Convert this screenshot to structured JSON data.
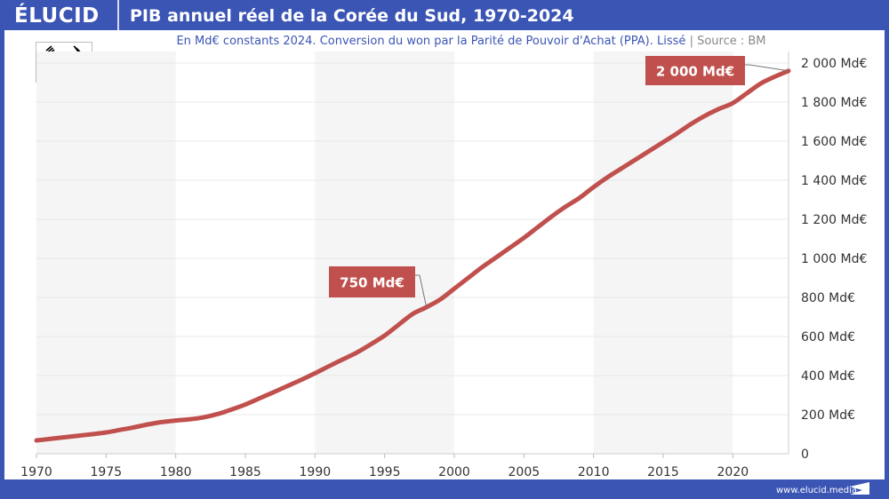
{
  "header": {
    "logo": "ÉLUCID",
    "title": "PIB annuel réel de la Corée du Sud, 1970-2024"
  },
  "subtitle": {
    "text": "En Md€ constants 2024. Conversion du won par la Parité de Pouvoir d'Achat (PPA). Lissé",
    "separator": "|",
    "source": "Source : BM"
  },
  "footer": {
    "url": "www.elucid.media"
  },
  "flag": {
    "country": "south-korea-flag-icon"
  },
  "colors": {
    "brand": "#3b55b5",
    "line": "#c0504d",
    "band": "#f5f5f5"
  },
  "chart_data": {
    "type": "line",
    "title": "PIB annuel réel de la Corée du Sud, 1970-2024",
    "xlabel": "",
    "ylabel": "",
    "xlim": [
      1970,
      2024
    ],
    "ylim": [
      0,
      2000
    ],
    "y_axis_position": "right",
    "grid": true,
    "x_ticks": [
      1970,
      1975,
      1980,
      1985,
      1990,
      1995,
      2000,
      2005,
      2010,
      2015,
      2020
    ],
    "y_ticks": [
      0,
      200,
      400,
      600,
      800,
      1000,
      1200,
      1400,
      1600,
      1800,
      2000
    ],
    "y_tick_labels": [
      "0",
      "200 Md€",
      "400 Md€",
      "600 Md€",
      "800 Md€",
      "1 000 Md€",
      "1 200 Md€",
      "1 400 Md€",
      "1 600 Md€",
      "1 800 Md€",
      "2 000 Md€"
    ],
    "shaded_decades": [
      [
        1970,
        1980
      ],
      [
        1990,
        2000
      ],
      [
        2010,
        2020
      ]
    ],
    "x": [
      1970,
      1971,
      1972,
      1973,
      1974,
      1975,
      1976,
      1977,
      1978,
      1979,
      1980,
      1981,
      1982,
      1983,
      1984,
      1985,
      1986,
      1987,
      1988,
      1989,
      1990,
      1991,
      1992,
      1993,
      1994,
      1995,
      1996,
      1997,
      1998,
      1999,
      2000,
      2001,
      2002,
      2003,
      2004,
      2005,
      2006,
      2007,
      2008,
      2009,
      2010,
      2011,
      2012,
      2013,
      2014,
      2015,
      2016,
      2017,
      2018,
      2019,
      2020,
      2021,
      2022,
      2023,
      2024
    ],
    "series": [
      {
        "values": [
          68,
          76,
          84,
          92,
          100,
          109,
          122,
          135,
          150,
          162,
          170,
          176,
          186,
          203,
          226,
          252,
          283,
          314,
          346,
          378,
          412,
          448,
          483,
          518,
          560,
          605,
          660,
          715,
          750,
          790,
          845,
          900,
          955,
          1005,
          1055,
          1105,
          1160,
          1215,
          1265,
          1310,
          1365,
          1415,
          1460,
          1505,
          1550,
          1595,
          1640,
          1688,
          1730,
          1765,
          1795,
          1845,
          1895,
          1930,
          1960
        ]
      }
    ],
    "annotations": [
      {
        "x": 1998,
        "y": 750,
        "label": "750 Md€"
      },
      {
        "x": 2024,
        "y": 1960,
        "label": "2 000 Md€"
      }
    ]
  }
}
